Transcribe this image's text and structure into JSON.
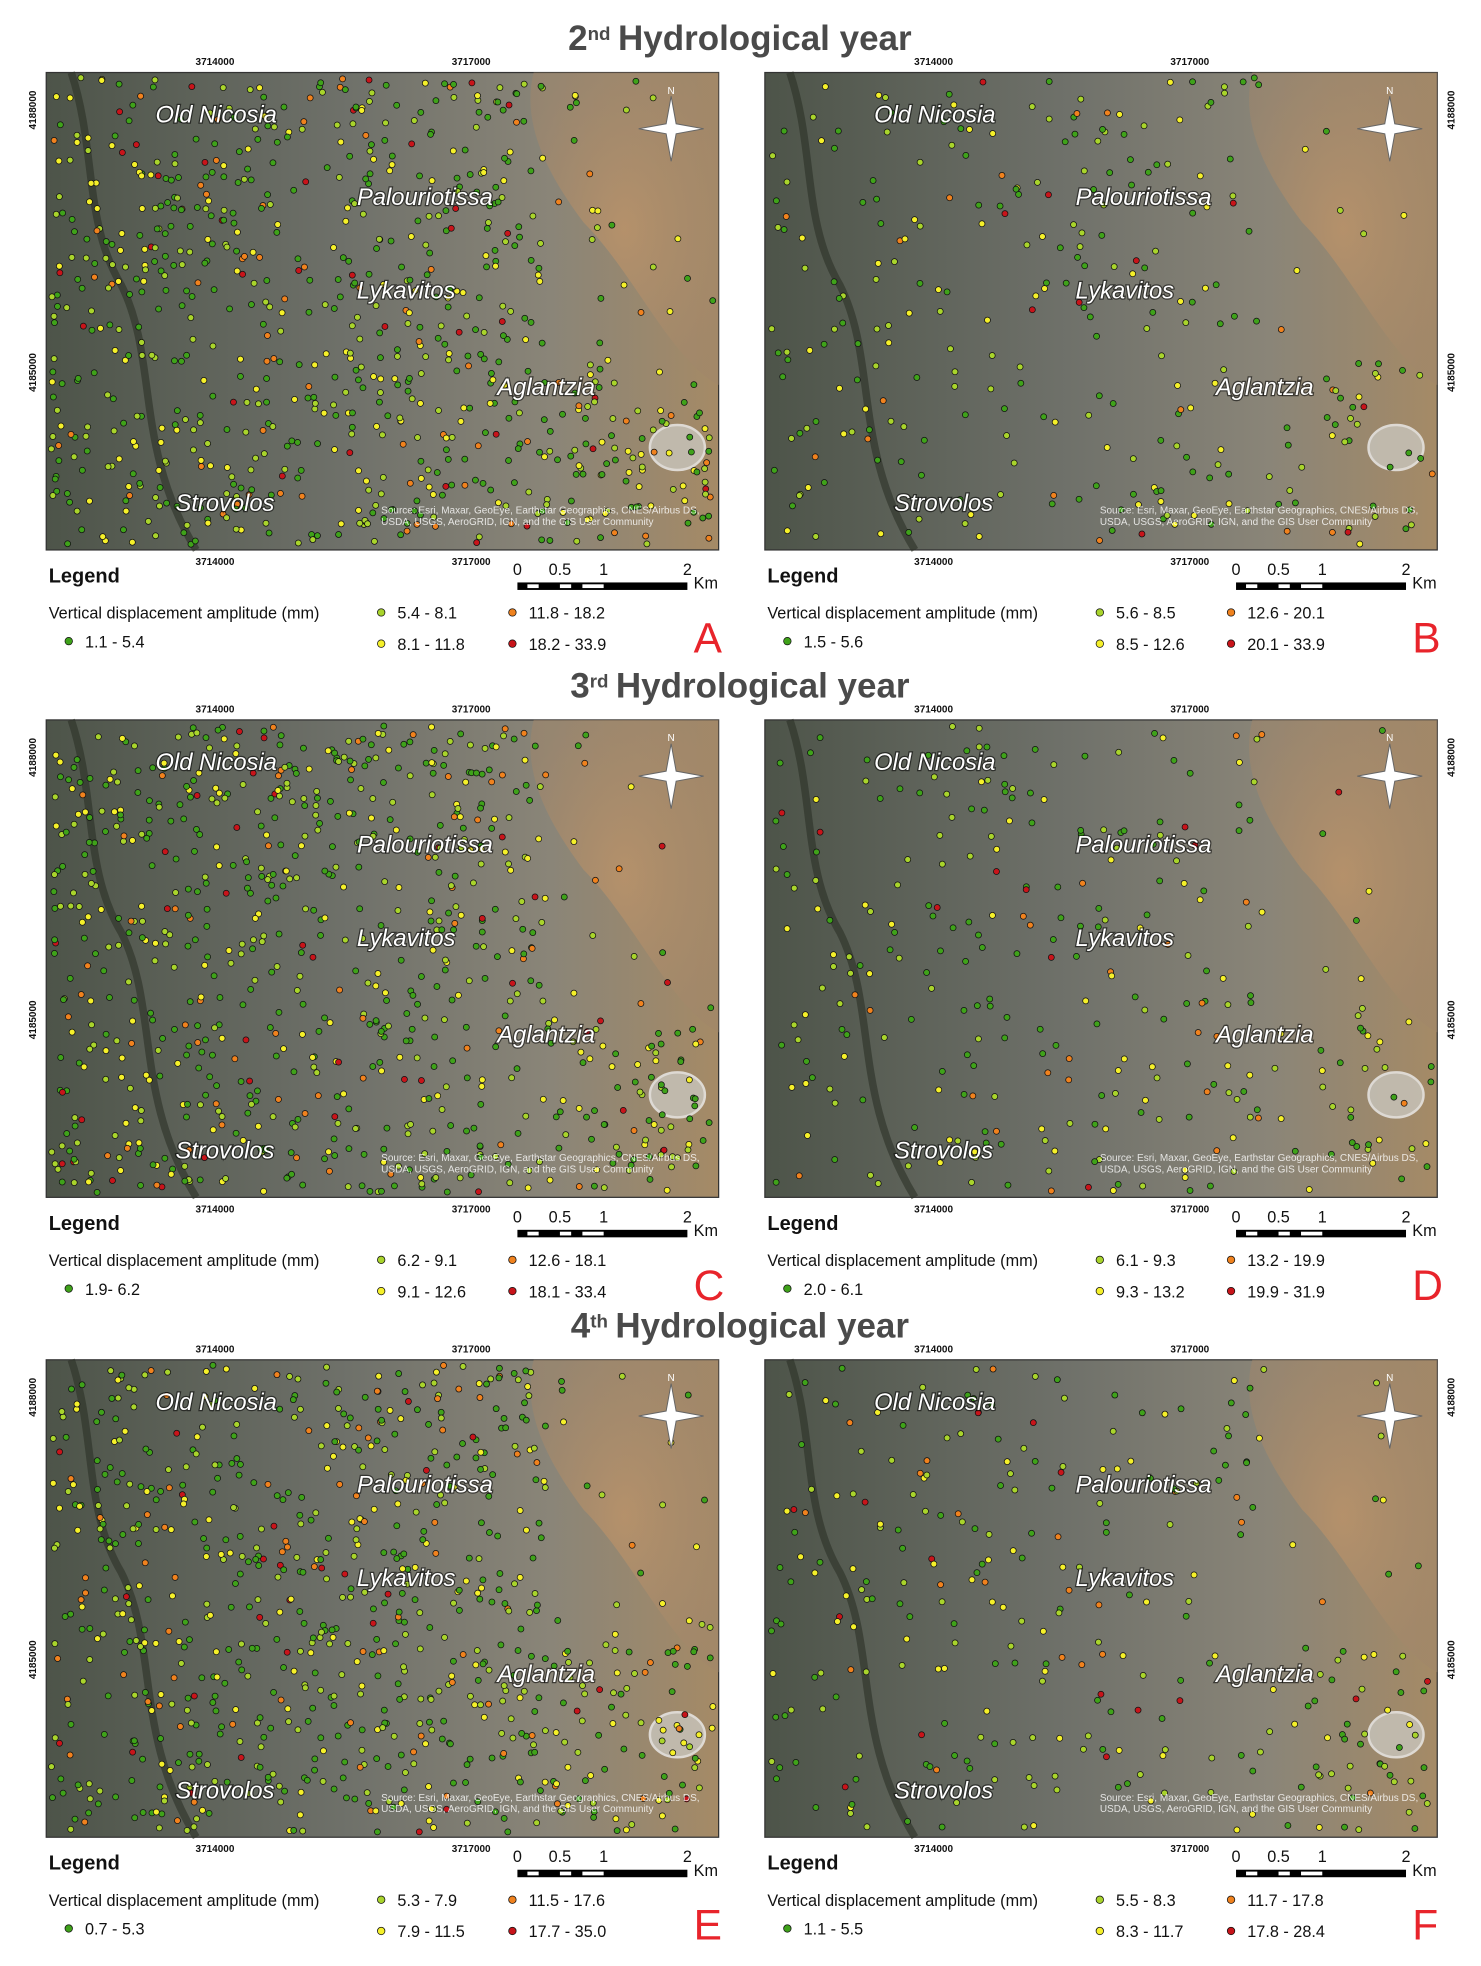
{
  "common": {
    "x_coords": [
      "3714000",
      "3717000"
    ],
    "y_coords": [
      "4188000",
      "4185000"
    ],
    "places": [
      "Old Nicosia",
      "Palouriotissa",
      "Lykavitos",
      "Aglantzia",
      "Strovolos"
    ],
    "attribution": "Source: Esri, Maxar, GeoEye, Earthstar Geographics, CNES/Airbus DS, USDA, USGS, AeroGRID, IGN, and the GIS User Community",
    "legend_title": "Legend",
    "legend_subtitle": "Vertical displacement amplitude (mm)",
    "scale_labels": [
      "0",
      "0.5",
      "1",
      "2"
    ],
    "scale_unit": "Km",
    "north": "N",
    "class_colors": [
      "#3fa21a",
      "#a9d42c",
      "#f5f02a",
      "#f0821e",
      "#c8141a"
    ]
  },
  "sections": [
    {
      "number": "2",
      "suffix": "nd",
      "text": "Hydrological year",
      "panels": [
        {
          "letter": "A",
          "classes": [
            "1.1 - 5.4",
            "5.4 - 8.1",
            "8.1 - 11.8",
            "11.8 - 18.2",
            "18.2 - 33.9"
          ]
        },
        {
          "letter": "B",
          "classes": [
            "1.5 - 5.6",
            "5.6 - 8.5",
            "8.5 - 12.6",
            "12.6 - 20.1",
            "20.1 - 33.9"
          ]
        }
      ]
    },
    {
      "number": "3",
      "suffix": "rd",
      "text": "Hydrological year",
      "panels": [
        {
          "letter": "C",
          "classes": [
            "1.9- 6.2",
            "6.2 - 9.1",
            "9.1 - 12.6",
            "12.6 - 18.1",
            "18.1 - 33.4"
          ]
        },
        {
          "letter": "D",
          "classes": [
            "2.0 - 6.1",
            "6.1 - 9.3",
            "9.3 - 13.2",
            "13.2 - 19.9",
            "19.9 - 31.9"
          ]
        }
      ]
    },
    {
      "number": "4",
      "suffix": "th",
      "text": "Hydrological year",
      "panels": [
        {
          "letter": "E",
          "classes": [
            "0.7 - 5.3",
            "5.3 - 7.9",
            "7.9 - 11.5",
            "11.5 - 17.6",
            "17.7 - 35.0"
          ]
        },
        {
          "letter": "F",
          "classes": [
            "1.1 - 5.5",
            "5.5 - 8.3",
            "8.3 - 11.7",
            "11.7 - 17.8",
            "17.8 - 28.4"
          ]
        }
      ]
    }
  ]
}
